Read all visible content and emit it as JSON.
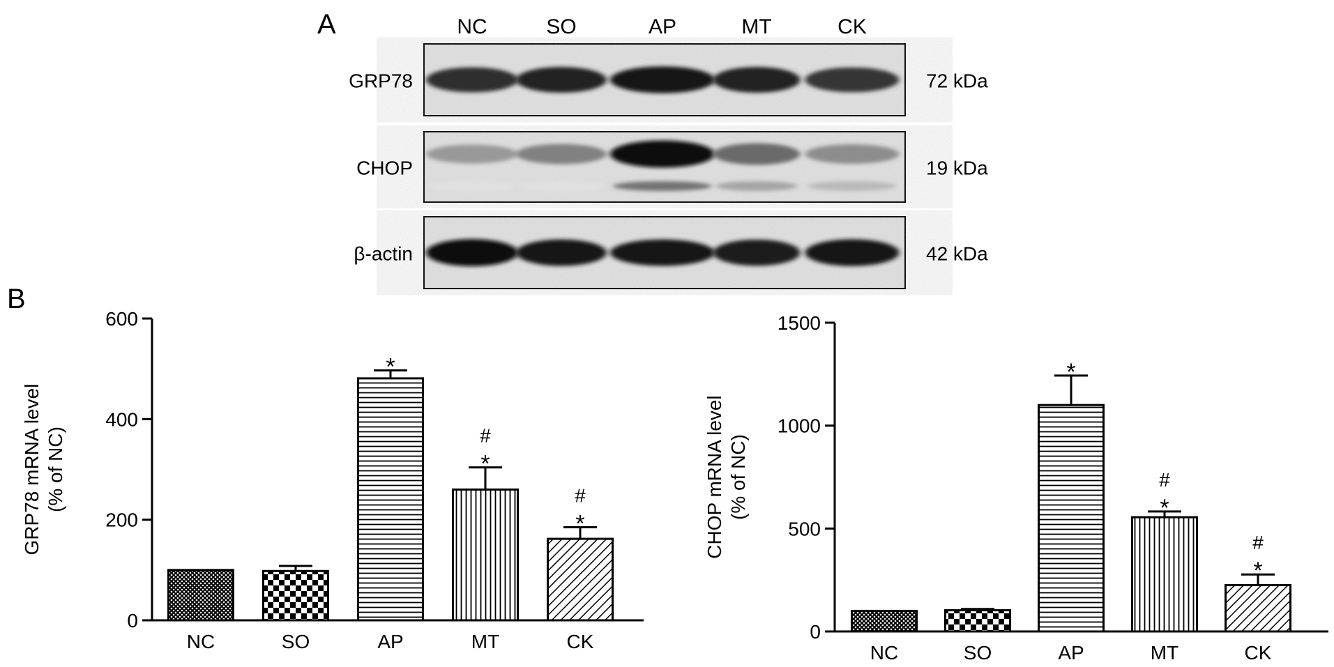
{
  "panel_a": {
    "label": "A",
    "lanes": [
      "NC",
      "SO",
      "AP",
      "MT",
      "CK"
    ],
    "blots": [
      {
        "protein": "GRP78",
        "size": "72 kDa",
        "band_intensity": [
          0.8,
          0.85,
          0.92,
          0.85,
          0.78
        ],
        "secondary_band_intensity": [
          0,
          0,
          0,
          0,
          0
        ]
      },
      {
        "protein": "CHOP",
        "size": "19 kDa",
        "band_intensity": [
          0.35,
          0.45,
          0.95,
          0.55,
          0.4
        ],
        "secondary_band_intensity": [
          0.05,
          0.05,
          0.6,
          0.35,
          0.25
        ]
      },
      {
        "protein": "β-actin",
        "size": "42 kDa",
        "band_intensity": [
          0.95,
          0.9,
          0.9,
          0.88,
          0.92
        ],
        "secondary_band_intensity": [
          0,
          0,
          0,
          0,
          0
        ]
      }
    ]
  },
  "panel_b": {
    "label": "B"
  },
  "chart_data": [
    {
      "type": "bar",
      "categories": [
        "NC",
        "SO",
        "AP",
        "MT",
        "CK"
      ],
      "values": [
        100,
        98,
        481,
        260,
        162
      ],
      "errors": [
        0,
        10,
        16,
        44,
        23
      ],
      "significance": [
        "",
        "",
        "*",
        "#\n*",
        "#\n*"
      ],
      "patterns": [
        "crosshatch",
        "checker",
        "hlines",
        "vlines",
        "diagonal"
      ],
      "ylabel_line1": "GRP78 mRNA level",
      "ylabel_line2": "(% of NC)",
      "ylim": [
        0,
        600
      ],
      "yticks": [
        0,
        200,
        400,
        600
      ],
      "grid": false
    },
    {
      "type": "bar",
      "categories": [
        "NC",
        "SO",
        "AP",
        "MT",
        "CK"
      ],
      "values": [
        100,
        103,
        1100,
        555,
        225
      ],
      "errors": [
        0,
        6,
        143,
        28,
        52
      ],
      "significance": [
        "",
        "",
        "*",
        "#\n*",
        "#\n*"
      ],
      "patterns": [
        "crosshatch",
        "checker",
        "hlines",
        "vlines",
        "diagonal"
      ],
      "ylabel_line1": "CHOP mRNA level",
      "ylabel_line2": "(% of NC)",
      "ylim": [
        0,
        1500
      ],
      "yticks": [
        0,
        500,
        1000,
        1500
      ],
      "grid": false
    }
  ]
}
